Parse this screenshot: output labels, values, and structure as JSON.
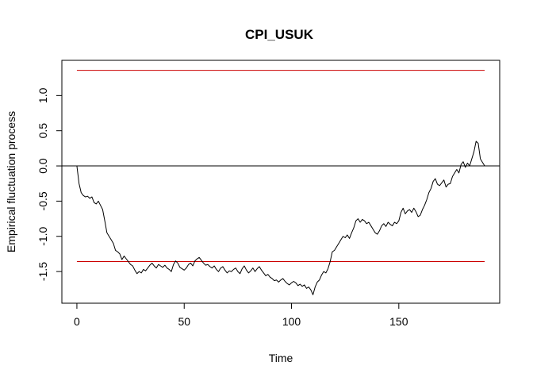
{
  "chart_data": {
    "type": "line",
    "title": "CPI_USUK",
    "xlabel": "Time",
    "ylabel": "Empirical fluctuation process",
    "xlim": [
      -7,
      197
    ],
    "ylim": [
      -1.95,
      1.5
    ],
    "x_ticks": [
      0,
      50,
      100,
      150
    ],
    "x_tick_labels": [
      "0",
      "50",
      "100",
      "150"
    ],
    "y_ticks": [
      -1.5,
      -1.0,
      -0.5,
      0.0,
      0.5,
      1.0
    ],
    "y_tick_labels": [
      "-1.5",
      "-1.0",
      "-0.5",
      "0.0",
      "0.5",
      "1.0"
    ],
    "grid": false,
    "legend": "none",
    "reference_lines": [
      {
        "y": 0.0,
        "x_range": "full",
        "color": "#000000"
      },
      {
        "y": 1.358,
        "x_range": [
          0,
          190
        ],
        "color": "#cc0000"
      },
      {
        "y": -1.358,
        "x_range": [
          0,
          190
        ],
        "color": "#cc0000"
      }
    ],
    "series": [
      {
        "color": "#000000",
        "points": [
          [
            0,
            0.0
          ],
          [
            1,
            -0.25
          ],
          [
            2,
            -0.38
          ],
          [
            3,
            -0.42
          ],
          [
            4,
            -0.44
          ],
          [
            5,
            -0.43
          ],
          [
            6,
            -0.46
          ],
          [
            7,
            -0.44
          ],
          [
            8,
            -0.52
          ],
          [
            9,
            -0.54
          ],
          [
            10,
            -0.5
          ],
          [
            11,
            -0.56
          ],
          [
            12,
            -0.62
          ],
          [
            13,
            -0.78
          ],
          [
            14,
            -0.95
          ],
          [
            15,
            -1.0
          ],
          [
            16,
            -1.05
          ],
          [
            17,
            -1.1
          ],
          [
            18,
            -1.2
          ],
          [
            19,
            -1.22
          ],
          [
            20,
            -1.25
          ],
          [
            21,
            -1.33
          ],
          [
            22,
            -1.28
          ],
          [
            23,
            -1.32
          ],
          [
            24,
            -1.36
          ],
          [
            25,
            -1.4
          ],
          [
            26,
            -1.42
          ],
          [
            27,
            -1.48
          ],
          [
            28,
            -1.53
          ],
          [
            29,
            -1.5
          ],
          [
            30,
            -1.52
          ],
          [
            31,
            -1.47
          ],
          [
            32,
            -1.49
          ],
          [
            33,
            -1.45
          ],
          [
            34,
            -1.41
          ],
          [
            35,
            -1.38
          ],
          [
            36,
            -1.42
          ],
          [
            37,
            -1.45
          ],
          [
            38,
            -1.4
          ],
          [
            39,
            -1.42
          ],
          [
            40,
            -1.44
          ],
          [
            41,
            -1.41
          ],
          [
            42,
            -1.45
          ],
          [
            43,
            -1.47
          ],
          [
            44,
            -1.5
          ],
          [
            45,
            -1.4
          ],
          [
            46,
            -1.35
          ],
          [
            47,
            -1.38
          ],
          [
            48,
            -1.44
          ],
          [
            49,
            -1.46
          ],
          [
            50,
            -1.48
          ],
          [
            51,
            -1.45
          ],
          [
            52,
            -1.4
          ],
          [
            53,
            -1.38
          ],
          [
            54,
            -1.42
          ],
          [
            55,
            -1.35
          ],
          [
            56,
            -1.32
          ],
          [
            57,
            -1.3
          ],
          [
            58,
            -1.34
          ],
          [
            59,
            -1.38
          ],
          [
            60,
            -1.41
          ],
          [
            61,
            -1.4
          ],
          [
            62,
            -1.43
          ],
          [
            63,
            -1.45
          ],
          [
            64,
            -1.42
          ],
          [
            65,
            -1.47
          ],
          [
            66,
            -1.5
          ],
          [
            67,
            -1.45
          ],
          [
            68,
            -1.43
          ],
          [
            69,
            -1.48
          ],
          [
            70,
            -1.52
          ],
          [
            71,
            -1.49
          ],
          [
            72,
            -1.5
          ],
          [
            73,
            -1.47
          ],
          [
            74,
            -1.45
          ],
          [
            75,
            -1.5
          ],
          [
            76,
            -1.53
          ],
          [
            77,
            -1.46
          ],
          [
            78,
            -1.42
          ],
          [
            79,
            -1.48
          ],
          [
            80,
            -1.52
          ],
          [
            81,
            -1.49
          ],
          [
            82,
            -1.45
          ],
          [
            83,
            -1.5
          ],
          [
            84,
            -1.46
          ],
          [
            85,
            -1.43
          ],
          [
            86,
            -1.48
          ],
          [
            87,
            -1.52
          ],
          [
            88,
            -1.56
          ],
          [
            89,
            -1.54
          ],
          [
            90,
            -1.58
          ],
          [
            91,
            -1.6
          ],
          [
            92,
            -1.63
          ],
          [
            93,
            -1.62
          ],
          [
            94,
            -1.65
          ],
          [
            95,
            -1.62
          ],
          [
            96,
            -1.6
          ],
          [
            97,
            -1.64
          ],
          [
            98,
            -1.67
          ],
          [
            99,
            -1.69
          ],
          [
            100,
            -1.66
          ],
          [
            101,
            -1.64
          ],
          [
            102,
            -1.66
          ],
          [
            103,
            -1.7
          ],
          [
            104,
            -1.68
          ],
          [
            105,
            -1.71
          ],
          [
            106,
            -1.69
          ],
          [
            107,
            -1.74
          ],
          [
            108,
            -1.72
          ],
          [
            109,
            -1.76
          ],
          [
            110,
            -1.83
          ],
          [
            111,
            -1.72
          ],
          [
            112,
            -1.65
          ],
          [
            113,
            -1.62
          ],
          [
            114,
            -1.55
          ],
          [
            115,
            -1.5
          ],
          [
            116,
            -1.52
          ],
          [
            117,
            -1.46
          ],
          [
            118,
            -1.36
          ],
          [
            119,
            -1.22
          ],
          [
            120,
            -1.2
          ],
          [
            121,
            -1.15
          ],
          [
            122,
            -1.1
          ],
          [
            123,
            -1.05
          ],
          [
            124,
            -1.0
          ],
          [
            125,
            -1.02
          ],
          [
            126,
            -0.98
          ],
          [
            127,
            -1.03
          ],
          [
            128,
            -0.95
          ],
          [
            129,
            -0.88
          ],
          [
            130,
            -0.78
          ],
          [
            131,
            -0.75
          ],
          [
            132,
            -0.8
          ],
          [
            133,
            -0.76
          ],
          [
            134,
            -0.78
          ],
          [
            135,
            -0.82
          ],
          [
            136,
            -0.8
          ],
          [
            137,
            -0.85
          ],
          [
            138,
            -0.9
          ],
          [
            139,
            -0.95
          ],
          [
            140,
            -0.97
          ],
          [
            141,
            -0.92
          ],
          [
            142,
            -0.85
          ],
          [
            143,
            -0.82
          ],
          [
            144,
            -0.86
          ],
          [
            145,
            -0.8
          ],
          [
            146,
            -0.83
          ],
          [
            147,
            -0.85
          ],
          [
            148,
            -0.8
          ],
          [
            149,
            -0.82
          ],
          [
            150,
            -0.78
          ],
          [
            151,
            -0.66
          ],
          [
            152,
            -0.6
          ],
          [
            153,
            -0.68
          ],
          [
            154,
            -0.64
          ],
          [
            155,
            -0.62
          ],
          [
            156,
            -0.66
          ],
          [
            157,
            -0.6
          ],
          [
            158,
            -0.65
          ],
          [
            159,
            -0.72
          ],
          [
            160,
            -0.7
          ],
          [
            161,
            -0.62
          ],
          [
            162,
            -0.56
          ],
          [
            163,
            -0.48
          ],
          [
            164,
            -0.38
          ],
          [
            165,
            -0.32
          ],
          [
            166,
            -0.22
          ],
          [
            167,
            -0.18
          ],
          [
            168,
            -0.26
          ],
          [
            169,
            -0.28
          ],
          [
            170,
            -0.24
          ],
          [
            171,
            -0.2
          ],
          [
            172,
            -0.3
          ],
          [
            173,
            -0.26
          ],
          [
            174,
            -0.25
          ],
          [
            175,
            -0.15
          ],
          [
            176,
            -0.1
          ],
          [
            177,
            -0.05
          ],
          [
            178,
            -0.1
          ],
          [
            179,
            0.02
          ],
          [
            180,
            0.06
          ],
          [
            181,
            -0.02
          ],
          [
            182,
            0.04
          ],
          [
            183,
            0.0
          ],
          [
            184,
            0.1
          ],
          [
            185,
            0.2
          ],
          [
            186,
            0.35
          ],
          [
            187,
            0.32
          ],
          [
            188,
            0.1
          ],
          [
            189,
            0.05
          ],
          [
            190,
            0.0
          ]
        ]
      }
    ]
  }
}
